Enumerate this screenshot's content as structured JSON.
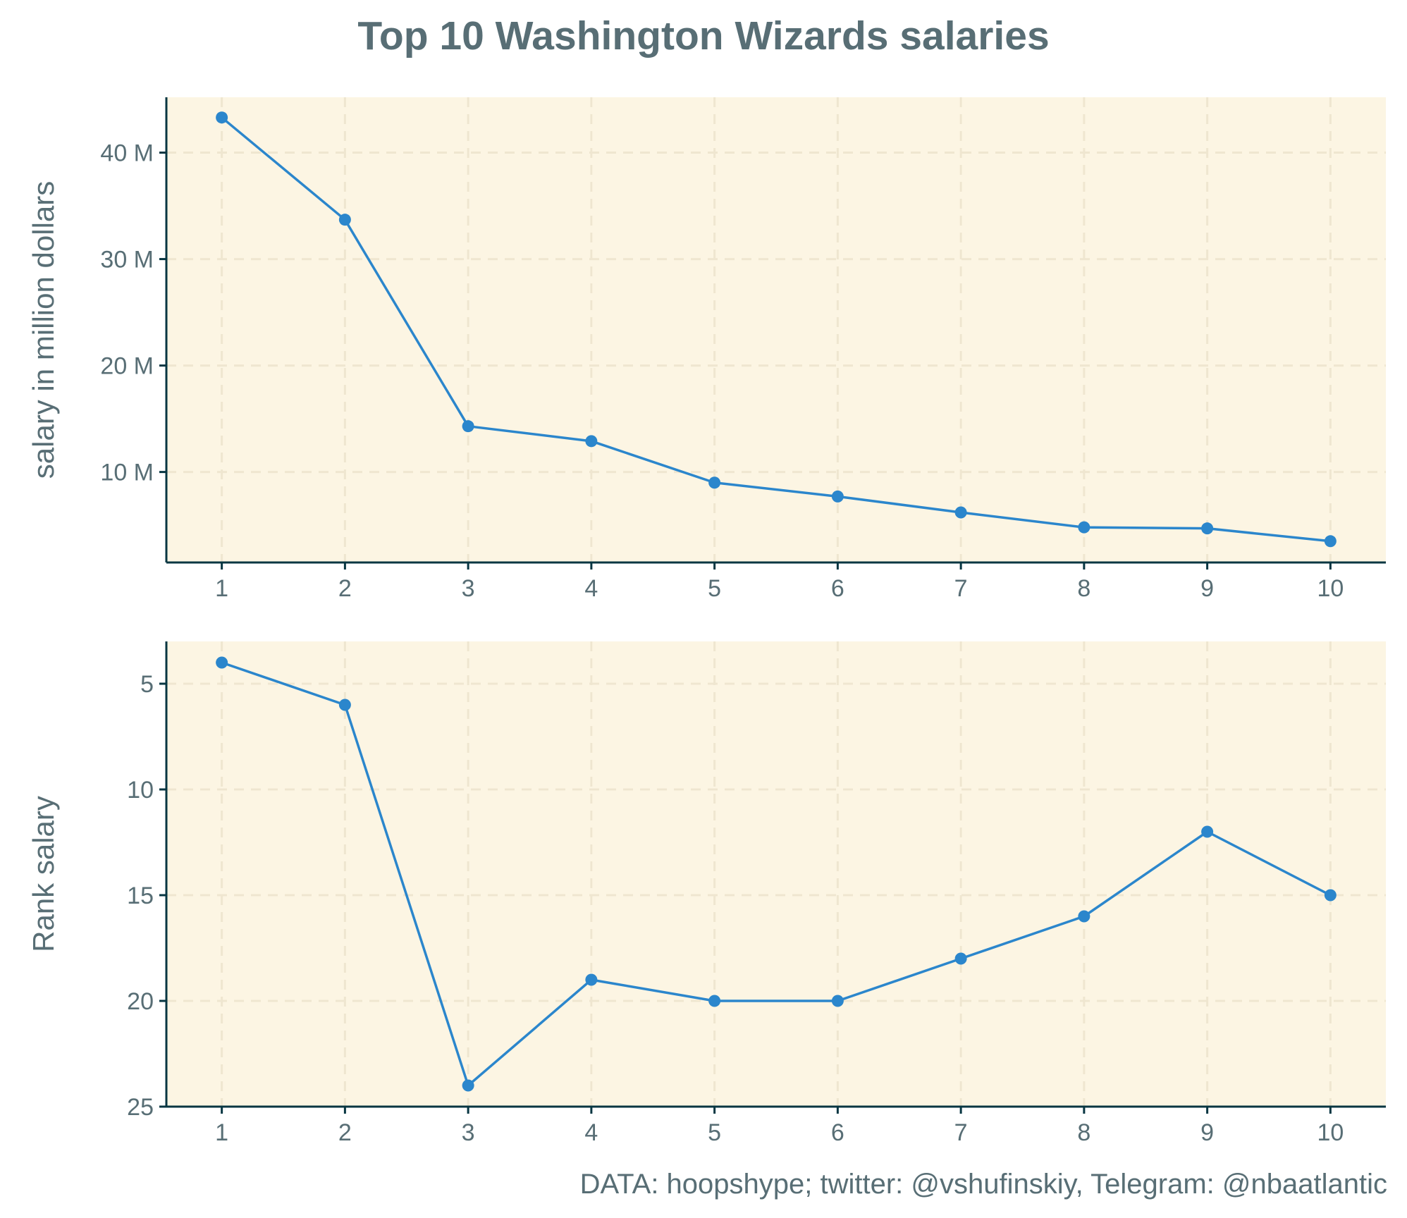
{
  "title": "Top 10 Washington Wizards salaries",
  "caption": "DATA: hoopshype; twitter: @vshufinskiy, Telegram: @nbaatlantic",
  "colors": {
    "line": "#2b86cc",
    "panel_bg": "#fcf5e3",
    "grid": "#efe6d0",
    "axis": "#073642",
    "text": "#586e75"
  },
  "chart_data": [
    {
      "type": "line",
      "ylabel": "salary in million dollars",
      "x": [
        1,
        2,
        3,
        4,
        5,
        6,
        7,
        8,
        9,
        10
      ],
      "values": [
        43.3,
        33.7,
        14.3,
        12.9,
        9.0,
        7.7,
        6.2,
        4.8,
        4.7,
        3.5
      ],
      "xlim": [
        0.55,
        10.45
      ],
      "ylim": [
        1.5,
        45.2
      ],
      "y_inverted": false,
      "xticks": [
        1,
        2,
        3,
        4,
        5,
        6,
        7,
        8,
        9,
        10
      ],
      "yticks": [
        10,
        20,
        30,
        40
      ],
      "ytick_labels": [
        "10 M",
        "20 M",
        "30 M",
        "40 M"
      ],
      "grid": true
    },
    {
      "type": "line",
      "ylabel": "Rank salary",
      "x": [
        1,
        2,
        3,
        4,
        5,
        6,
        7,
        8,
        9,
        10
      ],
      "values": [
        4,
        6,
        24,
        19,
        20,
        20,
        18,
        16,
        12,
        15
      ],
      "xlim": [
        0.55,
        10.45
      ],
      "ylim": [
        3.0,
        25.0
      ],
      "y_inverted": true,
      "xticks": [
        1,
        2,
        3,
        4,
        5,
        6,
        7,
        8,
        9,
        10
      ],
      "yticks": [
        5,
        10,
        15,
        20,
        25
      ],
      "ytick_labels": [
        "5",
        "10",
        "15",
        "20",
        "25"
      ],
      "grid": true
    }
  ]
}
